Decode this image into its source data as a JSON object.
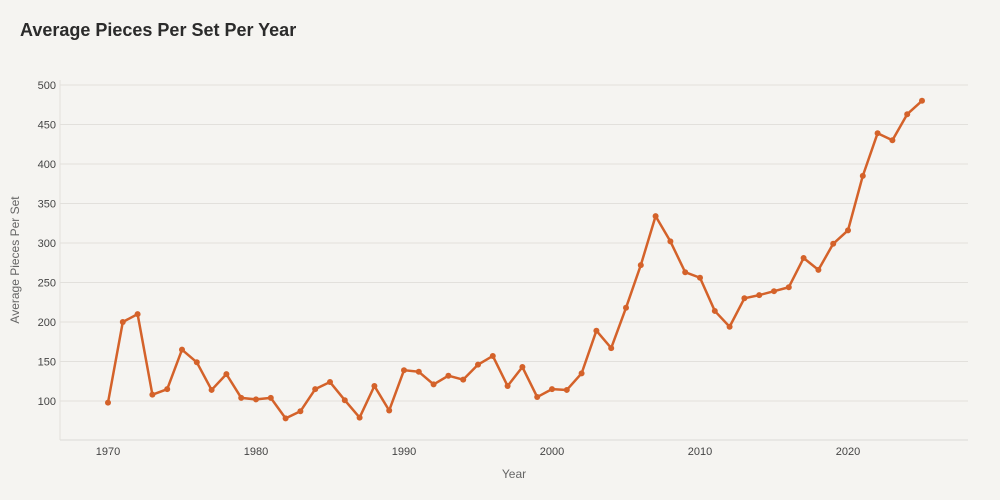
{
  "chart_data": {
    "type": "line",
    "title": "Average Pieces Per Set Per Year",
    "xlabel": "Year",
    "ylabel": "Average Pieces Per Set",
    "xlim": [
      1967,
      2028
    ],
    "ylim": [
      50,
      510
    ],
    "x_ticks": [
      "1970",
      "1980",
      "1990",
      "2000",
      "2010",
      "2020"
    ],
    "y_ticks": [
      "100",
      "150",
      "200",
      "250",
      "300",
      "350",
      "400",
      "450",
      "500"
    ],
    "grid": true,
    "color": "#d4622a",
    "x": [
      1970,
      1971,
      1972,
      1973,
      1974,
      1975,
      1976,
      1977,
      1978,
      1979,
      1980,
      1981,
      1982,
      1983,
      1984,
      1985,
      1986,
      1987,
      1988,
      1989,
      1990,
      1991,
      1992,
      1993,
      1994,
      1995,
      1996,
      1997,
      1998,
      1999,
      2000,
      2001,
      2002,
      2003,
      2004,
      2005,
      2006,
      2007,
      2008,
      2009,
      2010,
      2011,
      2012,
      2013,
      2014,
      2015,
      2016,
      2017,
      2018,
      2019,
      2020,
      2021,
      2022,
      2023,
      2024,
      2025
    ],
    "y": [
      98,
      200,
      210,
      108,
      115,
      165,
      149,
      114,
      134,
      104,
      102,
      104,
      78,
      87,
      115,
      124,
      101,
      79,
      119,
      88,
      139,
      137,
      121,
      132,
      127,
      146,
      157,
      119,
      143,
      105,
      115,
      114,
      135,
      189,
      167,
      218,
      272,
      334,
      302,
      263,
      256,
      214,
      194,
      230,
      234,
      239,
      244,
      281,
      266,
      299,
      316,
      385,
      439,
      430,
      463,
      480
    ]
  }
}
